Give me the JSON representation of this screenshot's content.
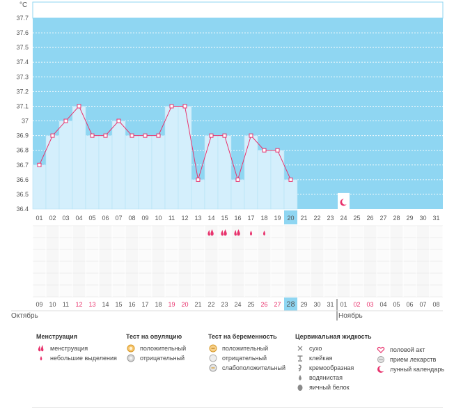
{
  "chart_data": {
    "type": "line",
    "unit_label": "°C",
    "y_ticks": [
      "37.7",
      "37.6",
      "37.5",
      "37.4",
      "37.3",
      "37.2",
      "37.1",
      "37",
      "36.9",
      "36.8",
      "36.7",
      "36.6",
      "36.5",
      "36.4"
    ],
    "ylim": [
      36.4,
      37.7
    ],
    "cycle_days": [
      "01",
      "02",
      "03",
      "04",
      "05",
      "06",
      "07",
      "08",
      "09",
      "10",
      "11",
      "12",
      "13",
      "14",
      "15",
      "16",
      "17",
      "18",
      "19",
      "20",
      "21",
      "22",
      "23",
      "24",
      "25",
      "26",
      "27",
      "28",
      "29",
      "30",
      "31"
    ],
    "temperatures": [
      36.7,
      36.9,
      37.0,
      37.1,
      36.9,
      36.9,
      37.0,
      36.9,
      36.9,
      36.9,
      37.1,
      37.1,
      36.6,
      36.9,
      36.9,
      36.6,
      36.9,
      36.8,
      36.8,
      36.6
    ],
    "current_day_index": 19,
    "moon_day_index": 23,
    "menstruation": [
      {
        "day_index": 13,
        "type": "menstruation"
      },
      {
        "day_index": 14,
        "type": "menstruation"
      },
      {
        "day_index": 15,
        "type": "menstruation"
      },
      {
        "day_index": 16,
        "type": "spotting"
      },
      {
        "day_index": 17,
        "type": "spotting"
      }
    ],
    "calendar_dates": [
      {
        "label": "09",
        "red": false
      },
      {
        "label": "10",
        "red": false
      },
      {
        "label": "11",
        "red": false
      },
      {
        "label": "12",
        "red": true
      },
      {
        "label": "13",
        "red": true
      },
      {
        "label": "14",
        "red": false
      },
      {
        "label": "15",
        "red": false
      },
      {
        "label": "16",
        "red": false
      },
      {
        "label": "17",
        "red": false
      },
      {
        "label": "18",
        "red": false
      },
      {
        "label": "19",
        "red": true
      },
      {
        "label": "20",
        "red": true
      },
      {
        "label": "21",
        "red": false
      },
      {
        "label": "22",
        "red": false
      },
      {
        "label": "23",
        "red": false
      },
      {
        "label": "24",
        "red": false
      },
      {
        "label": "25",
        "red": false
      },
      {
        "label": "26",
        "red": true
      },
      {
        "label": "27",
        "red": true
      },
      {
        "label": "28",
        "red": false
      },
      {
        "label": "29",
        "red": false
      },
      {
        "label": "30",
        "red": false
      },
      {
        "label": "31",
        "red": false
      },
      {
        "label": "01",
        "red": false
      },
      {
        "label": "02",
        "red": true
      },
      {
        "label": "03",
        "red": true
      },
      {
        "label": "04",
        "red": false
      },
      {
        "label": "05",
        "red": false
      },
      {
        "label": "06",
        "red": false
      },
      {
        "label": "07",
        "red": false
      },
      {
        "label": "08",
        "red": false
      }
    ],
    "month_left": "Октябрь",
    "month_right": "Ноябрь",
    "month_break_index": 23
  },
  "colors": {
    "sky": "#8fd6f2",
    "bar": "#d4effc",
    "bar_stroke": "#b2e1f6",
    "line": "#e8336d",
    "red_text": "#e8336d",
    "current": "#8fd6f2"
  },
  "legend": {
    "menstruation": {
      "title": "Менструация",
      "items": [
        {
          "label": "менструация",
          "icon": "menstruation-drops-icon"
        },
        {
          "label": "небольшие выделения",
          "icon": "spotting-drop-icon"
        }
      ]
    },
    "ovulation": {
      "title": "Тест на овуляцию",
      "items": [
        {
          "label": "положительный",
          "icon": "positive-test-icon"
        },
        {
          "label": "отрицательный",
          "icon": "negative-test-icon"
        }
      ]
    },
    "pregnancy": {
      "title": "Тест на беременность",
      "items": [
        {
          "label": "положительный",
          "icon": "pregnancy-positive-icon"
        },
        {
          "label": "отрицательный",
          "icon": "pregnancy-negative-icon"
        },
        {
          "label": "слабоположительный",
          "icon": "pregnancy-weak-positive-icon"
        }
      ]
    },
    "cervical": {
      "title": "Цервикальная жидкость",
      "items": [
        {
          "label": "сухо",
          "icon": "dry-cross-icon"
        },
        {
          "label": "клейкая",
          "icon": "sticky-icon"
        },
        {
          "label": "кремообразная",
          "icon": "creamy-icon"
        },
        {
          "label": "водянистая",
          "icon": "watery-drop-icon"
        },
        {
          "label": "яичный белок",
          "icon": "egg-white-icon"
        }
      ]
    },
    "other": {
      "items": [
        {
          "label": "половой акт",
          "icon": "heart-icon"
        },
        {
          "label": "прием лекарств",
          "icon": "pill-icon"
        },
        {
          "label": "лунный календарь",
          "icon": "moon-icon"
        }
      ]
    }
  }
}
